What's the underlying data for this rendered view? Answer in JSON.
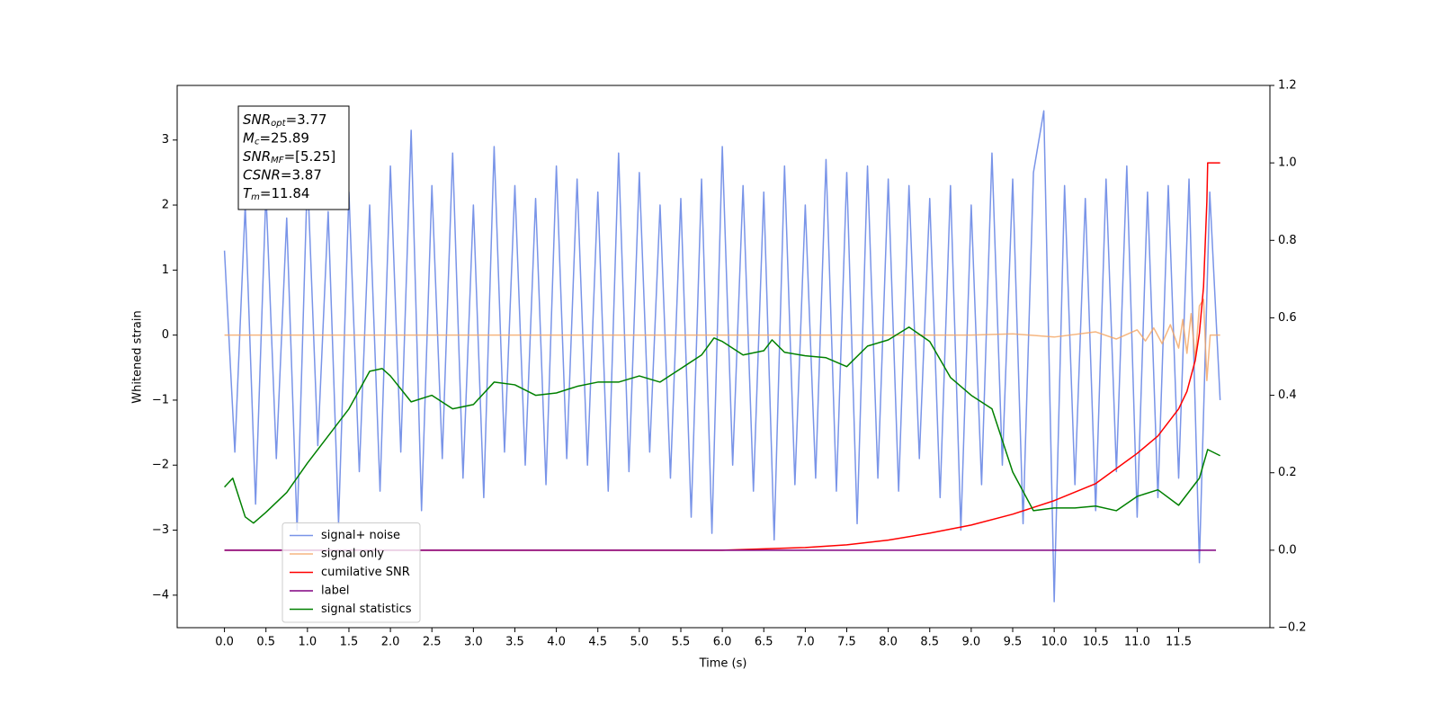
{
  "chart_data": {
    "type": "line",
    "xlabel": "Time (s)",
    "ylabel": "Whitened strain",
    "xlim": [
      -0.57,
      12.6
    ],
    "ylim": [
      -4.5,
      3.84
    ],
    "y2lim": [
      -0.2,
      1.2
    ],
    "xticks": [
      {
        "value": 0,
        "label": "0.0"
      },
      0.5,
      {
        "value": 1,
        "label": "1.0"
      },
      1.5,
      {
        "value": 2,
        "label": "2.0"
      },
      2.5,
      {
        "value": 3,
        "label": "3.0"
      },
      3.5,
      {
        "value": 4,
        "label": "4.0"
      },
      4.5,
      {
        "value": 5,
        "label": "5.0"
      },
      5.5,
      {
        "value": 6,
        "label": "6.0"
      },
      6.5,
      {
        "value": 7,
        "label": "7.0"
      },
      7.5,
      {
        "value": 8,
        "label": "8.0"
      },
      8.5,
      {
        "value": 9,
        "label": "9.0"
      },
      9.5,
      {
        "value": 10,
        "label": "10.0"
      },
      10.5,
      {
        "value": 11,
        "label": "11.0"
      },
      11.5
    ],
    "yticks": [
      {
        "value": -4,
        "label": "−4"
      },
      {
        "value": -3,
        "label": "−3"
      },
      {
        "value": -2,
        "label": "−2"
      },
      {
        "value": -1,
        "label": "−1"
      },
      0,
      1,
      2,
      3
    ],
    "y2ticks": [
      {
        "value": -0.2,
        "label": "−0.2"
      },
      {
        "value": 0,
        "label": "0.0"
      },
      0.2,
      0.4,
      0.6,
      0.8,
      {
        "value": 1,
        "label": "1.0"
      },
      1.2
    ],
    "legend": "lower left",
    "annotation": [
      {
        "main": "SNR",
        "sub": "opt",
        "rest": "=3.77"
      },
      {
        "main": "M",
        "sub": "c",
        "rest": "=25.89"
      },
      {
        "main": "SNR",
        "sub": "MF",
        "rest": "=[5.25]"
      },
      {
        "main": "CSNR",
        "sub": "",
        "rest": "=3.87"
      },
      {
        "main": "T",
        "sub": "m",
        "rest": "=11.84"
      }
    ],
    "series": [
      {
        "name": "signal+ noise",
        "color": "#7994e8",
        "axis": "y",
        "x": [
          0,
          0.125,
          0.25,
          0.375,
          0.5,
          0.625,
          0.75,
          0.875,
          1,
          1.125,
          1.25,
          1.375,
          1.5,
          1.625,
          1.75,
          1.875,
          2,
          2.125,
          2.25,
          2.375,
          2.5,
          2.625,
          2.75,
          2.875,
          3,
          3.125,
          3.25,
          3.375,
          3.5,
          3.625,
          3.75,
          3.875,
          4,
          4.125,
          4.25,
          4.375,
          4.5,
          4.625,
          4.75,
          4.875,
          5,
          5.125,
          5.25,
          5.375,
          5.5,
          5.625,
          5.75,
          5.875,
          6,
          6.125,
          6.25,
          6.375,
          6.5,
          6.625,
          6.75,
          6.875,
          7,
          7.125,
          7.25,
          7.375,
          7.5,
          7.625,
          7.75,
          7.875,
          8,
          8.125,
          8.25,
          8.375,
          8.5,
          8.625,
          8.75,
          8.875,
          9,
          9.125,
          9.25,
          9.375,
          9.5,
          9.625,
          9.75,
          9.875,
          10,
          10.125,
          10.25,
          10.375,
          10.5,
          10.625,
          10.75,
          10.875,
          11,
          11.125,
          11.25,
          11.375,
          11.5,
          11.625,
          11.75,
          11.875,
          12
        ],
        "values": [
          1.3,
          -1.8,
          2.0,
          -2.6,
          2.2,
          -1.9,
          1.8,
          -3.0,
          2.5,
          -1.7,
          1.9,
          -2.9,
          2.2,
          -2.1,
          2.0,
          -2.4,
          2.6,
          -1.8,
          3.15,
          -2.7,
          2.3,
          -1.9,
          2.8,
          -2.2,
          2.0,
          -2.5,
          2.9,
          -1.8,
          2.3,
          -2.0,
          2.1,
          -2.3,
          2.6,
          -1.9,
          2.4,
          -2.0,
          2.2,
          -2.4,
          2.8,
          -2.1,
          2.5,
          -1.8,
          2.0,
          -2.2,
          2.1,
          -2.8,
          2.4,
          -3.05,
          2.9,
          -2.0,
          2.3,
          -2.4,
          2.2,
          -3.15,
          2.6,
          -2.3,
          2.0,
          -2.2,
          2.7,
          -2.4,
          2.5,
          -2.9,
          2.6,
          -2.2,
          2.4,
          -2.4,
          2.3,
          -1.9,
          2.1,
          -2.5,
          2.3,
          -3.0,
          2.0,
          -2.3,
          2.8,
          -2.0,
          2.4,
          -2.9,
          2.5,
          3.45,
          -4.1,
          2.3,
          -2.3,
          2.1,
          -2.7,
          2.4,
          -2.1,
          2.6,
          -2.8,
          2.2,
          -2.5,
          2.3,
          -2.2,
          2.4,
          -3.5,
          2.2,
          -1.0
        ]
      },
      {
        "name": "signal only",
        "color": "#f4a460",
        "axis": "y",
        "x": [
          0,
          9.0,
          9.5,
          10.0,
          10.5,
          10.75,
          11.0,
          11.1,
          11.2,
          11.3,
          11.4,
          11.5,
          11.55,
          11.6,
          11.65,
          11.7,
          11.75,
          11.8,
          11.84,
          11.88,
          12.0
        ],
        "values": [
          0,
          0,
          0.02,
          -0.03,
          0.05,
          -0.06,
          0.08,
          -0.09,
          0.11,
          -0.13,
          0.16,
          -0.2,
          0.24,
          -0.28,
          0.33,
          -0.38,
          0.45,
          0.55,
          -0.7,
          0,
          0
        ]
      },
      {
        "name": "cumilative SNR",
        "color": "#ff0000",
        "axis": "y2",
        "x": [
          0,
          6.0,
          7.0,
          7.5,
          8.0,
          8.5,
          9.0,
          9.5,
          10.0,
          10.5,
          11.0,
          11.25,
          11.5,
          11.6,
          11.7,
          11.75,
          11.8,
          11.84,
          11.85,
          12.0
        ],
        "values": [
          0,
          0,
          0.007,
          0.014,
          0.026,
          0.044,
          0.065,
          0.093,
          0.128,
          0.172,
          0.25,
          0.295,
          0.365,
          0.41,
          0.49,
          0.56,
          0.68,
          0.9,
          1.0,
          1.0
        ]
      },
      {
        "name": "label",
        "color": "#800080",
        "axis": "y2",
        "x": [
          0,
          11.95
        ],
        "values": [
          0,
          0
        ]
      },
      {
        "name": "signal statistics",
        "color": "#008000",
        "axis": "y2",
        "x": [
          0,
          0.1,
          0.25,
          0.35,
          0.5,
          0.75,
          1.0,
          1.25,
          1.5,
          1.75,
          1.9,
          2.0,
          2.25,
          2.5,
          2.75,
          3.0,
          3.25,
          3.5,
          3.75,
          4.0,
          4.25,
          4.5,
          4.75,
          5.0,
          5.25,
          5.5,
          5.75,
          5.9,
          6.0,
          6.25,
          6.5,
          6.6,
          6.75,
          7.0,
          7.25,
          7.5,
          7.75,
          8.0,
          8.25,
          8.5,
          8.75,
          9.0,
          9.25,
          9.5,
          9.75,
          10.0,
          10.25,
          10.5,
          10.75,
          11.0,
          11.25,
          11.5,
          11.75,
          11.85,
          12.0
        ],
        "values": [
          0.163,
          0.186,
          0.086,
          0.07,
          0.098,
          0.149,
          0.225,
          0.295,
          0.365,
          0.462,
          0.469,
          0.45,
          0.383,
          0.4,
          0.365,
          0.376,
          0.434,
          0.427,
          0.4,
          0.406,
          0.423,
          0.434,
          0.434,
          0.45,
          0.434,
          0.469,
          0.504,
          0.548,
          0.539,
          0.504,
          0.515,
          0.543,
          0.511,
          0.502,
          0.497,
          0.474,
          0.527,
          0.543,
          0.576,
          0.539,
          0.446,
          0.4,
          0.365,
          0.202,
          0.102,
          0.109,
          0.109,
          0.114,
          0.102,
          0.139,
          0.156,
          0.116,
          0.186,
          0.26,
          0.244
        ]
      }
    ]
  }
}
